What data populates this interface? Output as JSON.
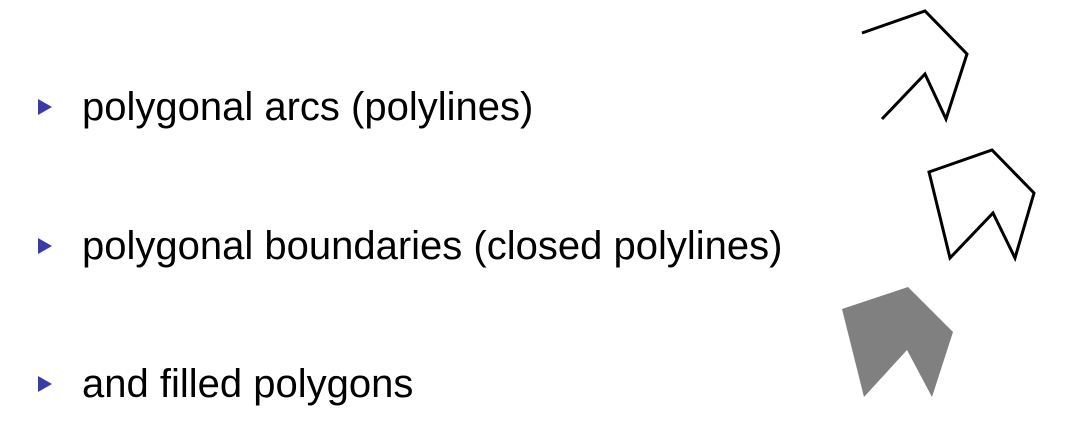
{
  "colors": {
    "bullet": "#3a3aa8",
    "text": "#000000",
    "stroke": "#000000",
    "fill": "#808080"
  },
  "bullets": [
    {
      "text": "polygonal arcs (polylines)",
      "icon": "triangle-bullet-icon"
    },
    {
      "text": "polygonal boundaries (closed polylines)",
      "icon": "triangle-bullet-icon"
    },
    {
      "text": "and filled polygons",
      "icon": "triangle-bullet-icon"
    }
  ]
}
